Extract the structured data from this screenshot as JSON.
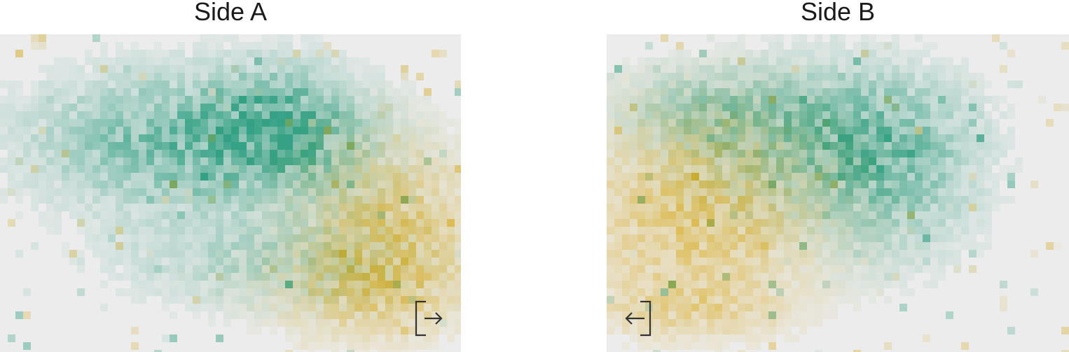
{
  "chart_data": [
    {
      "type": "heatmap",
      "title": "Side A",
      "icon": "exit-right-icon",
      "legend": "none",
      "grid": false,
      "colors": {
        "team1": "#2a9d7f",
        "team2": "#d9aa1e",
        "mixed": "#4f7f2a",
        "background": "#ececec"
      },
      "blobs": [
        {
          "team": "team1",
          "center": [
            0.42,
            0.33
          ],
          "spread": [
            0.23,
            0.14
          ],
          "peak": 0.6
        },
        {
          "team": "team1",
          "center": [
            0.62,
            0.28
          ],
          "spread": [
            0.1,
            0.12
          ],
          "peak": 0.45
        },
        {
          "team": "team2",
          "center": [
            0.85,
            0.58
          ],
          "spread": [
            0.12,
            0.16
          ],
          "peak": 0.45
        },
        {
          "team": "team2",
          "center": [
            0.8,
            0.8
          ],
          "spread": [
            0.14,
            0.1
          ],
          "peak": 0.35
        },
        {
          "team": "team1",
          "center": [
            0.55,
            0.7
          ],
          "spread": [
            0.2,
            0.1
          ],
          "peak": 0.25
        }
      ]
    },
    {
      "type": "heatmap",
      "title": "Side B",
      "icon": "exit-left-icon",
      "legend": "none",
      "grid": false,
      "colors": {
        "team1": "#2a9d7f",
        "team2": "#d9aa1e",
        "mixed": "#4f7f2a",
        "background": "#ececec"
      },
      "blobs": [
        {
          "team": "team2",
          "center": [
            0.2,
            0.55
          ],
          "spread": [
            0.17,
            0.2
          ],
          "peak": 0.5
        },
        {
          "team": "team1",
          "center": [
            0.48,
            0.3
          ],
          "spread": [
            0.18,
            0.14
          ],
          "peak": 0.45
        },
        {
          "team": "team1",
          "center": [
            0.62,
            0.45
          ],
          "spread": [
            0.12,
            0.18
          ],
          "peak": 0.35
        },
        {
          "team": "team1",
          "center": [
            0.2,
            0.22
          ],
          "spread": [
            0.12,
            0.08
          ],
          "peak": 0.25
        },
        {
          "team": "team2",
          "center": [
            0.18,
            0.85
          ],
          "spread": [
            0.14,
            0.06
          ],
          "peak": 0.25
        }
      ]
    }
  ]
}
